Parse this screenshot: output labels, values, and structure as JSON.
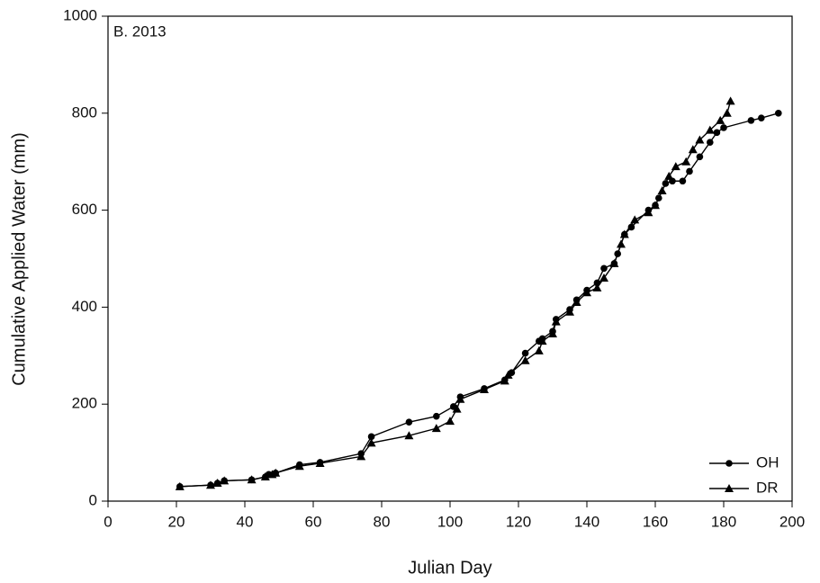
{
  "chart_data": {
    "type": "line",
    "annotation": "B. 2013",
    "x_label": "Julian Day",
    "y_label": "Cumulative Applied Water (mm)",
    "xlim": [
      0,
      200
    ],
    "xticks": [
      0,
      20,
      40,
      60,
      80,
      100,
      120,
      140,
      160,
      180,
      200
    ],
    "ylim": [
      0,
      1000
    ],
    "yticks": [
      0,
      200,
      400,
      600,
      800,
      1000
    ],
    "grid": false,
    "legend": "lower right",
    "series": [
      {
        "name": "OH",
        "color": "#000000",
        "marker": "circle",
        "x": [
          21,
          30,
          32,
          34,
          42,
          46,
          47,
          49,
          56,
          62,
          74,
          77,
          88,
          96,
          101,
          103,
          110,
          116,
          118,
          122,
          126,
          127,
          130,
          131,
          135,
          137,
          140,
          143,
          145,
          148,
          149,
          151,
          153,
          158,
          160,
          161,
          163,
          165,
          168,
          170,
          173,
          176,
          178,
          180,
          188,
          191,
          196
        ],
        "values": [
          30,
          33,
          37,
          42,
          44,
          50,
          55,
          58,
          75,
          80,
          98,
          133,
          163,
          175,
          195,
          215,
          232,
          250,
          265,
          305,
          330,
          335,
          350,
          375,
          395,
          415,
          435,
          450,
          480,
          490,
          510,
          550,
          565,
          600,
          610,
          625,
          655,
          660,
          660,
          680,
          710,
          740,
          760,
          770,
          785,
          790,
          800
        ]
      },
      {
        "name": "DR",
        "color": "#000000",
        "marker": "triangle",
        "x": [
          21,
          30,
          32,
          34,
          42,
          46,
          48,
          49,
          56,
          62,
          74,
          77,
          88,
          96,
          100,
          102,
          103,
          110,
          116,
          117,
          122,
          126,
          127,
          130,
          131,
          135,
          137,
          140,
          143,
          145,
          148,
          150,
          151,
          154,
          158,
          160,
          162,
          164,
          166,
          169,
          171,
          173,
          176,
          179,
          181,
          182
        ],
        "values": [
          30,
          33,
          37,
          42,
          44,
          50,
          55,
          58,
          72,
          78,
          92,
          120,
          135,
          150,
          165,
          190,
          210,
          230,
          248,
          260,
          290,
          310,
          330,
          345,
          370,
          390,
          410,
          430,
          440,
          460,
          490,
          530,
          550,
          580,
          595,
          610,
          640,
          670,
          690,
          700,
          725,
          745,
          765,
          785,
          800,
          825
        ]
      }
    ]
  }
}
